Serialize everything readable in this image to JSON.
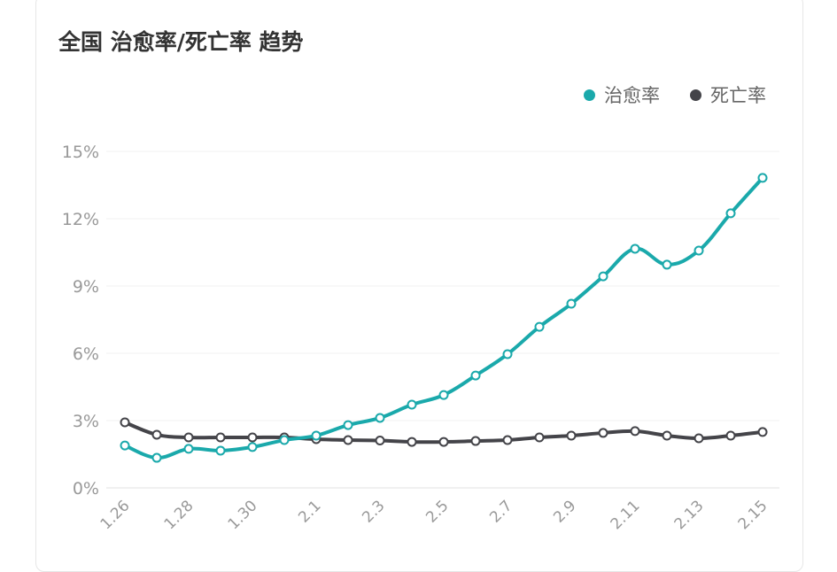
{
  "title": "全国 治愈率/死亡率 趋势",
  "chart_data": {
    "type": "line",
    "title": "全国 治愈率/死亡率 趋势",
    "xlabel": "",
    "ylabel": "",
    "x": [
      "1.26",
      "1.27",
      "1.28",
      "1.29",
      "1.30",
      "1.31",
      "2.1",
      "2.2",
      "2.3",
      "2.4",
      "2.5",
      "2.6",
      "2.7",
      "2.8",
      "2.9",
      "2.10",
      "2.11",
      "2.12",
      "2.13",
      "2.14",
      "2.15"
    ],
    "x_tick_labels": [
      "1.26",
      "1.28",
      "1.30",
      "2.1",
      "2.3",
      "2.5",
      "2.7",
      "2.9",
      "2.11",
      "2.13",
      "2.15"
    ],
    "y_tick_labels": [
      "0%",
      "3%",
      "6%",
      "9%",
      "12%",
      "15%"
    ],
    "ylim": [
      0,
      15
    ],
    "grid": true,
    "legend_position": "top-right",
    "series": [
      {
        "name": "治愈率",
        "color": "#1aa9ab",
        "values": [
          1.89,
          1.34,
          1.74,
          1.66,
          1.82,
          2.13,
          2.33,
          2.8,
          3.12,
          3.71,
          4.14,
          5.01,
          5.96,
          7.18,
          8.21,
          9.43,
          10.66,
          9.95,
          10.58,
          12.24,
          13.82
        ]
      },
      {
        "name": "死亡率",
        "color": "#444449",
        "values": [
          2.92,
          2.37,
          2.25,
          2.25,
          2.25,
          2.25,
          2.17,
          2.13,
          2.11,
          2.05,
          2.05,
          2.09,
          2.13,
          2.25,
          2.33,
          2.45,
          2.53,
          2.33,
          2.21,
          2.33,
          2.49
        ]
      }
    ]
  }
}
